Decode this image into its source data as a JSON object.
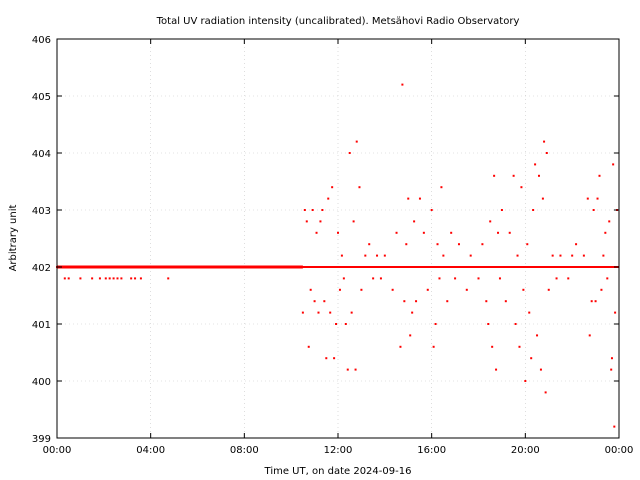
{
  "chart_data": {
    "type": "scatter",
    "title": "Total UV radiation intensity (uncalibrated). Metsähovi Radio Observatory",
    "xlabel": "Time UT, on date 2024-09-16",
    "ylabel": "Arbitrary unit",
    "xlim": [
      "00:00",
      "24:00"
    ],
    "ylim": [
      399,
      406
    ],
    "x_ticks": [
      "00:00",
      "04:00",
      "08:00",
      "12:00",
      "16:00",
      "20:00",
      "00:00"
    ],
    "y_ticks": [
      "399",
      "400",
      "401",
      "402",
      "403",
      "404",
      "405",
      "406"
    ],
    "grid": true,
    "series_color": "#ff0000",
    "points": [
      [
        "00:00",
        402.0
      ],
      [
        "00:20",
        401.8
      ],
      [
        "00:30",
        401.8
      ],
      [
        "01:00",
        401.8
      ],
      [
        "01:30",
        401.8
      ],
      [
        "01:50",
        401.8
      ],
      [
        "02:05",
        401.8
      ],
      [
        "02:15",
        401.8
      ],
      [
        "02:25",
        401.8
      ],
      [
        "02:35",
        401.8
      ],
      [
        "02:45",
        401.8
      ],
      [
        "03:10",
        401.8
      ],
      [
        "03:20",
        401.8
      ],
      [
        "03:35",
        401.8
      ],
      [
        "04:45",
        401.8
      ],
      [
        "10:30",
        401.2
      ],
      [
        "10:35",
        403.0
      ],
      [
        "10:40",
        402.8
      ],
      [
        "10:45",
        400.6
      ],
      [
        "10:50",
        401.6
      ],
      [
        "10:55",
        403.0
      ],
      [
        "11:00",
        401.4
      ],
      [
        "11:05",
        402.6
      ],
      [
        "11:10",
        401.2
      ],
      [
        "11:15",
        402.8
      ],
      [
        "11:20",
        403.0
      ],
      [
        "11:25",
        401.4
      ],
      [
        "11:30",
        400.4
      ],
      [
        "11:35",
        403.2
      ],
      [
        "11:40",
        401.2
      ],
      [
        "11:45",
        403.4
      ],
      [
        "11:50",
        400.4
      ],
      [
        "11:55",
        401.0
      ],
      [
        "12:00",
        402.6
      ],
      [
        "12:05",
        401.6
      ],
      [
        "12:10",
        402.2
      ],
      [
        "12:15",
        401.8
      ],
      [
        "12:20",
        401.0
      ],
      [
        "12:25",
        400.2
      ],
      [
        "12:30",
        404.0
      ],
      [
        "12:35",
        401.2
      ],
      [
        "12:40",
        402.8
      ],
      [
        "12:45",
        400.2
      ],
      [
        "12:48",
        404.2
      ],
      [
        "12:55",
        403.4
      ],
      [
        "13:00",
        401.6
      ],
      [
        "13:10",
        402.2
      ],
      [
        "13:20",
        402.4
      ],
      [
        "13:30",
        401.8
      ],
      [
        "13:40",
        402.2
      ],
      [
        "13:50",
        401.8
      ],
      [
        "14:00",
        402.2
      ],
      [
        "14:10",
        402.0
      ],
      [
        "14:20",
        401.6
      ],
      [
        "14:30",
        402.6
      ],
      [
        "14:40",
        400.6
      ],
      [
        "14:45",
        405.2
      ],
      [
        "14:50",
        401.4
      ],
      [
        "14:55",
        402.4
      ],
      [
        "15:00",
        403.2
      ],
      [
        "15:05",
        400.8
      ],
      [
        "15:10",
        401.2
      ],
      [
        "15:15",
        402.8
      ],
      [
        "15:20",
        401.4
      ],
      [
        "15:30",
        403.2
      ],
      [
        "15:40",
        402.6
      ],
      [
        "15:50",
        401.6
      ],
      [
        "16:00",
        403.0
      ],
      [
        "16:05",
        400.6
      ],
      [
        "16:10",
        401.0
      ],
      [
        "16:15",
        402.4
      ],
      [
        "16:20",
        401.8
      ],
      [
        "16:25",
        403.4
      ],
      [
        "16:30",
        402.2
      ],
      [
        "16:40",
        401.4
      ],
      [
        "16:50",
        402.6
      ],
      [
        "17:00",
        401.8
      ],
      [
        "17:10",
        402.4
      ],
      [
        "17:20",
        402.0
      ],
      [
        "17:30",
        401.6
      ],
      [
        "17:40",
        402.2
      ],
      [
        "17:50",
        402.0
      ],
      [
        "18:00",
        401.8
      ],
      [
        "18:10",
        402.4
      ],
      [
        "18:20",
        401.4
      ],
      [
        "18:25",
        401.0
      ],
      [
        "18:30",
        402.8
      ],
      [
        "18:35",
        400.6
      ],
      [
        "18:40",
        403.6
      ],
      [
        "18:45",
        400.2
      ],
      [
        "18:50",
        402.6
      ],
      [
        "18:55",
        401.8
      ],
      [
        "19:00",
        403.0
      ],
      [
        "19:10",
        401.4
      ],
      [
        "19:20",
        402.6
      ],
      [
        "19:30",
        403.6
      ],
      [
        "19:35",
        401.0
      ],
      [
        "19:40",
        402.2
      ],
      [
        "19:45",
        400.6
      ],
      [
        "19:50",
        403.4
      ],
      [
        "19:55",
        401.6
      ],
      [
        "20:00",
        400.0
      ],
      [
        "20:05",
        402.4
      ],
      [
        "20:10",
        401.2
      ],
      [
        "20:15",
        400.4
      ],
      [
        "20:20",
        403.0
      ],
      [
        "20:25",
        403.8
      ],
      [
        "20:30",
        400.8
      ],
      [
        "20:35",
        403.6
      ],
      [
        "20:40",
        400.2
      ],
      [
        "20:45",
        403.2
      ],
      [
        "20:48",
        404.2
      ],
      [
        "20:52",
        399.8
      ],
      [
        "20:55",
        404.0
      ],
      [
        "21:00",
        401.6
      ],
      [
        "21:10",
        402.2
      ],
      [
        "21:20",
        401.8
      ],
      [
        "21:30",
        402.2
      ],
      [
        "21:40",
        402.0
      ],
      [
        "21:50",
        401.8
      ],
      [
        "22:00",
        402.2
      ],
      [
        "22:10",
        402.4
      ],
      [
        "22:20",
        402.0
      ],
      [
        "22:30",
        402.2
      ],
      [
        "22:40",
        403.2
      ],
      [
        "22:45",
        400.8
      ],
      [
        "22:50",
        401.4
      ],
      [
        "22:55",
        403.0
      ],
      [
        "23:00",
        401.4
      ],
      [
        "23:05",
        403.2
      ],
      [
        "23:10",
        403.6
      ],
      [
        "23:15",
        401.6
      ],
      [
        "23:20",
        402.2
      ],
      [
        "23:25",
        402.6
      ],
      [
        "23:30",
        401.8
      ],
      [
        "23:35",
        402.8
      ],
      [
        "23:40",
        400.2
      ],
      [
        "23:42",
        400.4
      ],
      [
        "23:45",
        403.8
      ],
      [
        "23:48",
        399.2
      ],
      [
        "23:50",
        401.2
      ],
      [
        "23:55",
        403.0
      ]
    ]
  }
}
